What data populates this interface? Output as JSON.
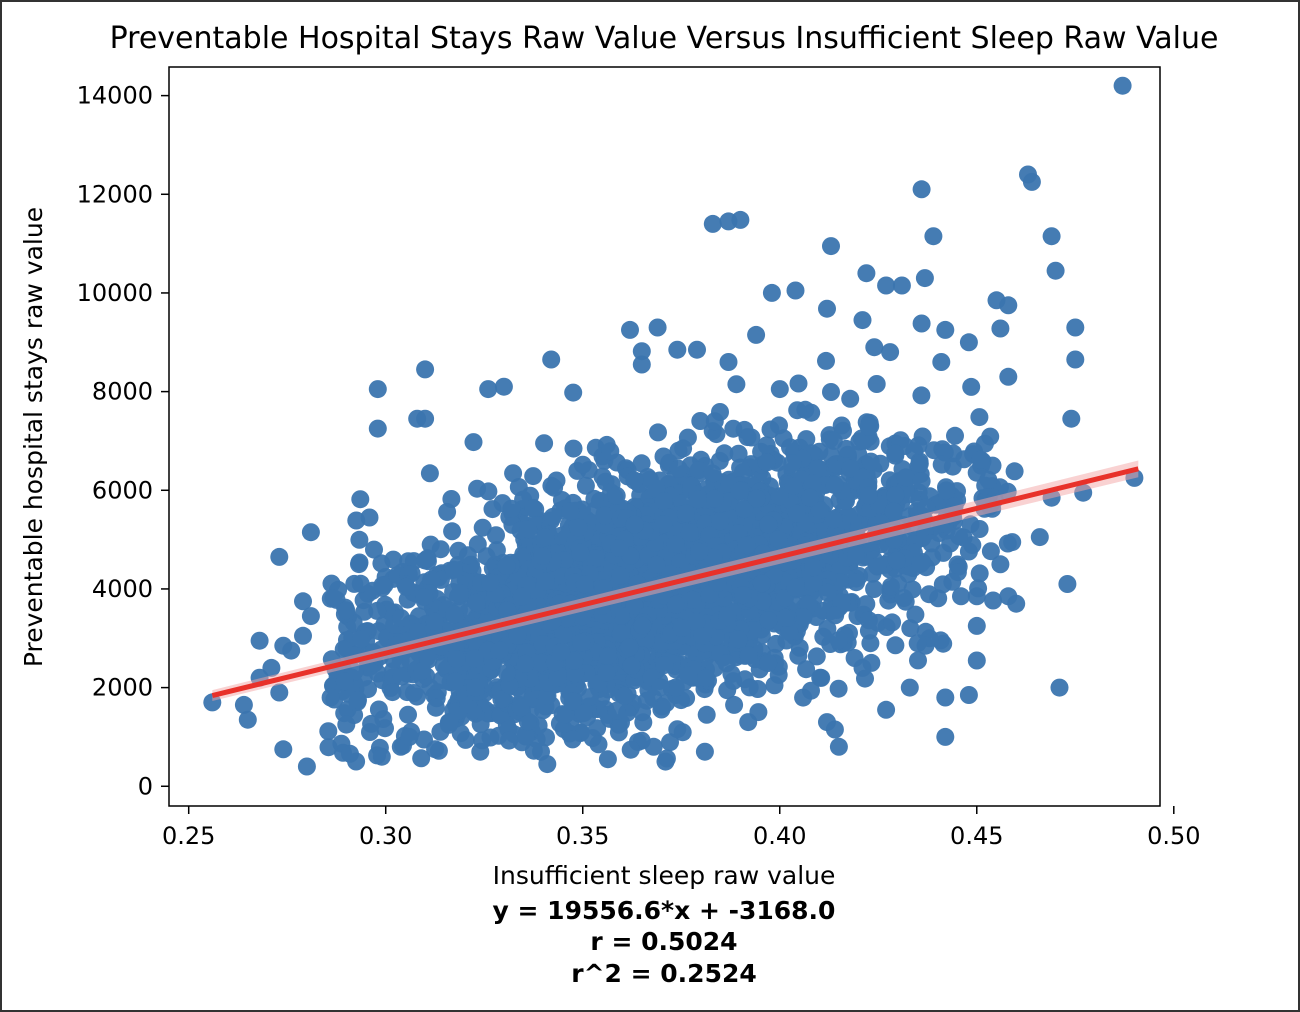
{
  "chart_data": {
    "type": "scatter",
    "title": "Preventable Hospital Stays Raw Value Versus Insufficient Sleep Raw Value",
    "xlabel": "Insufficient sleep raw value",
    "ylabel": "Preventable hospital stays raw value",
    "xlim": [
      0.245,
      0.4965
    ],
    "ylim": [
      -400,
      14580
    ],
    "x_ticks": [
      0.25,
      0.3,
      0.35,
      0.4,
      0.45,
      0.5
    ],
    "x_tick_labels": [
      "0.25",
      "0.30",
      "0.35",
      "0.40",
      "0.45",
      "0.50"
    ],
    "y_ticks": [
      0,
      2000,
      4000,
      6000,
      8000,
      10000,
      12000,
      14000
    ],
    "y_tick_labels": [
      "0",
      "2000",
      "4000",
      "6000",
      "8000",
      "10000",
      "12000",
      "14000"
    ],
    "grid": false,
    "colors": {
      "points": "#3b75af",
      "regression": "#e8312a"
    },
    "regression": {
      "slope": 19556.6,
      "intercept": -3168.0,
      "x_range": [
        0.256,
        0.491
      ]
    },
    "stats": [
      "y = 19556.6*x + -3168.0",
      "r = 0.5024",
      "r^2 = 0.2524"
    ],
    "outliers": [
      [
        0.487,
        14200
      ],
      [
        0.463,
        12400
      ],
      [
        0.464,
        12250
      ],
      [
        0.436,
        12100
      ],
      [
        0.383,
        11400
      ],
      [
        0.387,
        11450
      ],
      [
        0.39,
        11480
      ],
      [
        0.439,
        11150
      ],
      [
        0.469,
        11150
      ],
      [
        0.413,
        10950
      ],
      [
        0.47,
        10450
      ],
      [
        0.422,
        10400
      ],
      [
        0.398,
        10000
      ],
      [
        0.404,
        10050
      ],
      [
        0.427,
        10150
      ],
      [
        0.431,
        10150
      ],
      [
        0.455,
        9850
      ],
      [
        0.458,
        9750
      ],
      [
        0.412,
        9680
      ],
      [
        0.421,
        9450
      ],
      [
        0.436,
        9380
      ],
      [
        0.456,
        9280
      ],
      [
        0.475,
        9300
      ],
      [
        0.442,
        9250
      ],
      [
        0.362,
        9250
      ],
      [
        0.369,
        9300
      ],
      [
        0.394,
        9150
      ],
      [
        0.448,
        9000
      ],
      [
        0.424,
        8900
      ],
      [
        0.374,
        8850
      ],
      [
        0.379,
        8850
      ],
      [
        0.365,
        8820
      ],
      [
        0.428,
        8800
      ],
      [
        0.342,
        8650
      ],
      [
        0.365,
        8550
      ],
      [
        0.475,
        8650
      ],
      [
        0.441,
        8600
      ],
      [
        0.458,
        8300
      ],
      [
        0.31,
        8450
      ],
      [
        0.298,
        8050
      ],
      [
        0.326,
        8050
      ],
      [
        0.33,
        8100
      ],
      [
        0.387,
        8600
      ],
      [
        0.389,
        8150
      ],
      [
        0.4,
        8050
      ],
      [
        0.298,
        7250
      ],
      [
        0.308,
        7450
      ],
      [
        0.31,
        7450
      ],
      [
        0.474,
        7450
      ],
      [
        0.281,
        5150
      ],
      [
        0.273,
        4650
      ],
      [
        0.281,
        3450
      ],
      [
        0.279,
        3750
      ],
      [
        0.268,
        2950
      ],
      [
        0.274,
        2850
      ],
      [
        0.279,
        3050
      ],
      [
        0.276,
        2750
      ],
      [
        0.271,
        2400
      ],
      [
        0.268,
        2200
      ],
      [
        0.273,
        1900
      ],
      [
        0.264,
        1650
      ],
      [
        0.256,
        1700
      ],
      [
        0.265,
        1350
      ],
      [
        0.274,
        750
      ],
      [
        0.28,
        400
      ],
      [
        0.296,
        1100
      ],
      [
        0.299,
        600
      ],
      [
        0.286,
        1800
      ],
      [
        0.29,
        1250
      ],
      [
        0.306,
        1000
      ],
      [
        0.324,
        700
      ],
      [
        0.341,
        450
      ],
      [
        0.354,
        850
      ],
      [
        0.371,
        500
      ],
      [
        0.368,
        800
      ],
      [
        0.381,
        700
      ],
      [
        0.392,
        1300
      ],
      [
        0.412,
        1300
      ],
      [
        0.414,
        1150
      ],
      [
        0.415,
        800
      ],
      [
        0.427,
        1550
      ],
      [
        0.442,
        1000
      ],
      [
        0.442,
        1800
      ],
      [
        0.448,
        1850
      ],
      [
        0.471,
        2000
      ],
      [
        0.433,
        2000
      ],
      [
        0.45,
        2550
      ],
      [
        0.45,
        3250
      ],
      [
        0.473,
        4100
      ],
      [
        0.49,
        6250
      ],
      [
        0.477,
        5950
      ],
      [
        0.469,
        5850
      ],
      [
        0.466,
        5050
      ],
      [
        0.459,
        4950
      ],
      [
        0.456,
        4500
      ],
      [
        0.458,
        3850
      ],
      [
        0.46,
        3700
      ],
      [
        0.446,
        3850
      ],
      [
        0.45,
        3850
      ],
      [
        0.438,
        3000
      ],
      [
        0.437,
        2850
      ],
      [
        0.435,
        2900
      ],
      [
        0.421,
        2400
      ],
      [
        0.423,
        2900
      ],
      [
        0.419,
        2600
      ]
    ],
    "n_points": 3100
  }
}
